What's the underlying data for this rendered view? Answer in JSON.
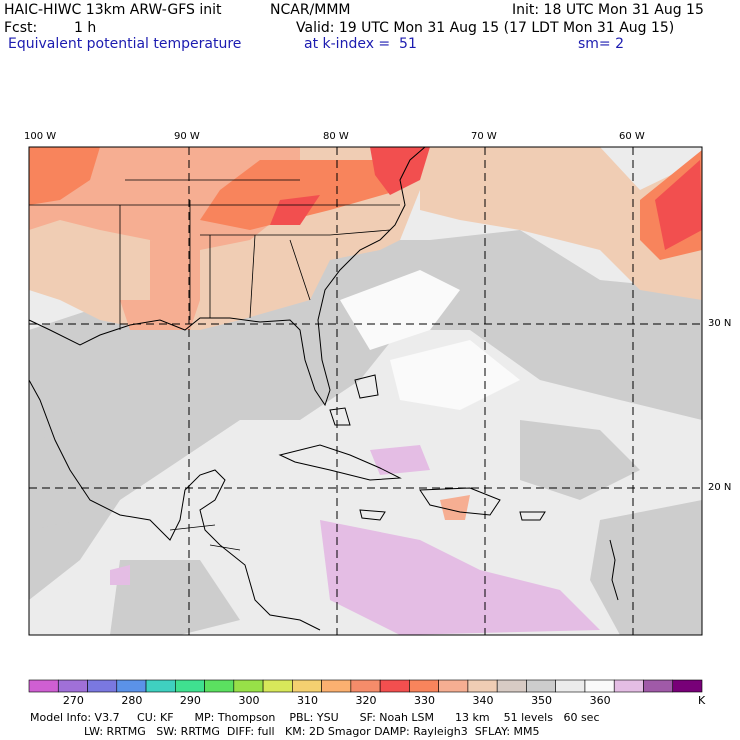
{
  "header": {
    "model": "HAIC-HIWC 13km ARW-GFS init",
    "org": "NCAR/MMM",
    "init": "Init: 18 UTC Mon 31 Aug 15",
    "fcst_label": "Fcst:",
    "fcst_value": "1 h",
    "valid": "Valid: 19 UTC Mon 31 Aug 15 (17 LDT Mon 31 Aug 15)",
    "field": "Equivalent potential temperature",
    "level": "at k-index =  51",
    "smooth": "sm= 2"
  },
  "map": {
    "lon_labels": [
      "100 W",
      "90 W",
      "80 W",
      "70 W",
      "60 W"
    ],
    "lat_labels": [
      "30 N",
      "20 N"
    ]
  },
  "colorbar": {
    "labels": [
      "270",
      "280",
      "290",
      "300",
      "310",
      "320",
      "330",
      "340",
      "350",
      "360"
    ],
    "unit": "K",
    "colors": [
      "#cf5fd2",
      "#a070d8",
      "#7a78e0",
      "#5b92e8",
      "#3fd0c0",
      "#3fe090",
      "#5be060",
      "#98e048",
      "#d8e85a",
      "#f4d070",
      "#fbb070",
      "#f58c6a",
      "#f24f4f",
      "#f8845c",
      "#f6ae92",
      "#f0cdb4",
      "#d8cbc4",
      "#cdcdcd",
      "#ececec",
      "#fafafa",
      "#e4bde4",
      "#a05aa8",
      "#780078"
    ]
  },
  "footer": {
    "line1": "Model Info: V3.7     CU: KF      MP: Thompson    PBL: YSU      SF: Noah LSM      13 km    51 levels   60 sec",
    "line2": "LW: RRTMG   SW: RRTMG  DIFF: full   KM: 2D Smagor DAMP: Rayleigh3  SFLAY: MM5"
  }
}
